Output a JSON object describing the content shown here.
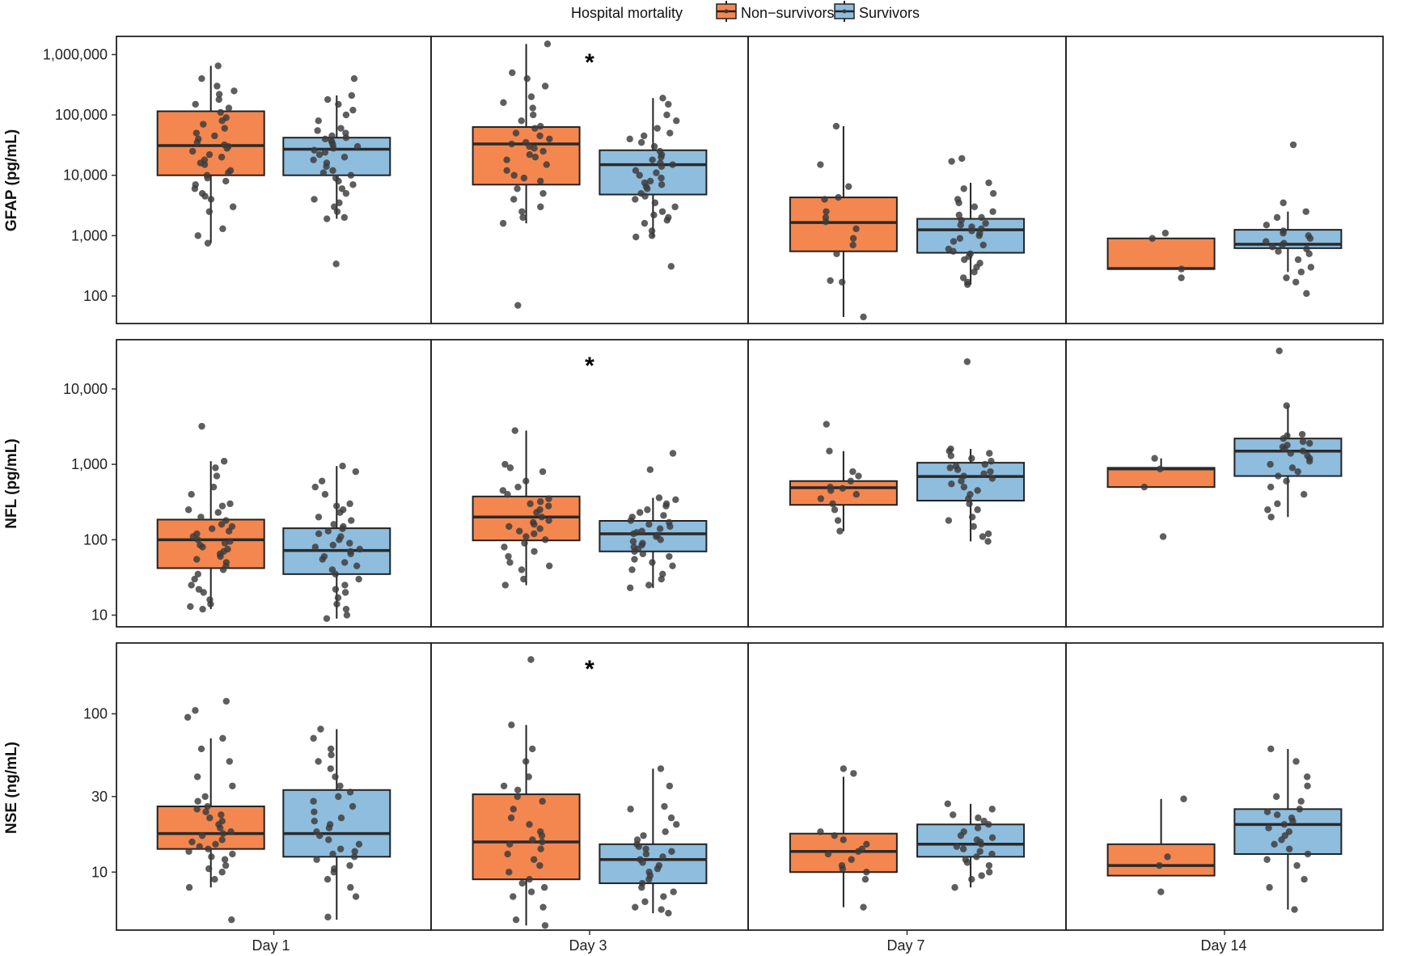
{
  "chart_data": {
    "type": "box",
    "legend": {
      "title": "Hospital mortality",
      "entries": [
        "Non−survivors",
        "Survivors"
      ],
      "position": "top-center"
    },
    "colors": {
      "Non-survivors": "#F4874F",
      "Survivors": "#8FBDDD",
      "points": "#3a3a3a"
    },
    "groups": [
      "Non-survivors",
      "Survivors"
    ],
    "columns": [
      "Day 1",
      "Day 3",
      "Day 7",
      "Day 14"
    ],
    "rows": [
      {
        "ylabel": "GFAP (pg/mL)",
        "scale": "log10",
        "ylim": [
          35,
          2000000
        ],
        "ticks": [
          100,
          1000,
          10000,
          100000,
          1000000
        ],
        "tick_labels": [
          "100",
          "1,000",
          "10,000",
          "100,000",
          "1,000,000"
        ],
        "significant": [
          false,
          true,
          false,
          false
        ],
        "boxes": [
          [
            {
              "q1": 10000,
              "median": 31000,
              "q3": 115000,
              "lo": 750,
              "hi": 650000
            },
            {
              "q1": 10000,
              "median": 27000,
              "q3": 42000,
              "lo": 1900,
              "hi": 210000
            }
          ],
          [
            {
              "q1": 7000,
              "median": 33000,
              "q3": 63000,
              "lo": 1600,
              "hi": 1500000
            },
            {
              "q1": 4800,
              "median": 15000,
              "q3": 26000,
              "lo": 950,
              "hi": 190000
            }
          ],
          [
            {
              "q1": 550,
              "median": 1650,
              "q3": 4300,
              "lo": 45,
              "hi": 65000
            },
            {
              "q1": 520,
              "median": 1250,
              "q3": 1900,
              "lo": 155,
              "hi": 7500
            }
          ],
          [
            {
              "q1": 280,
              "median": 285,
              "q3": 900,
              "lo": 280,
              "hi": 900
            },
            {
              "q1": 620,
              "median": 720,
              "q3": 1250,
              "lo": 250,
              "hi": 2500
            }
          ]
        ],
        "points": [
          [
            [
              650000,
              400000,
              300000,
              250000,
              220000,
              180000,
              150000,
              130000,
              110000,
              90000,
              80000,
              70000,
              60000,
              50000,
              45000,
              40000,
              35000,
              32000,
              30000,
              28000,
              25000,
              22000,
              20000,
              18000,
              16000,
              15000,
              12000,
              11000,
              10000,
              9000,
              8000,
              7000,
              6000,
              5000,
              4500,
              4000,
              3000,
              2500,
              1300,
              1000,
              750
            ],
            [
              400000,
              210000,
              180000,
              150000,
              120000,
              100000,
              80000,
              60000,
              55000,
              50000,
              45000,
              42000,
              40000,
              38000,
              35000,
              32000,
              30000,
              28000,
              26000,
              24000,
              22000,
              20000,
              18000,
              16000,
              14000,
              12000,
              11000,
              10000,
              9000,
              8000,
              7000,
              6000,
              5000,
              4000,
              3500,
              3000,
              2500,
              2000,
              1900,
              340
            ]
          ],
          [
            [
              1500000,
              500000,
              400000,
              300000,
              200000,
              160000,
              130000,
              100000,
              80000,
              65000,
              60000,
              50000,
              45000,
              40000,
              35000,
              33000,
              30000,
              28000,
              25000,
              22000,
              20000,
              18000,
              15000,
              12000,
              10000,
              9000,
              8000,
              6000,
              5000,
              4000,
              3000,
              2500,
              2000,
              1600,
              70
            ],
            [
              190000,
              150000,
              100000,
              80000,
              60000,
              50000,
              45000,
              40000,
              35000,
              30000,
              25000,
              22000,
              20000,
              18000,
              16000,
              15000,
              14000,
              12000,
              11000,
              10000,
              9000,
              8000,
              7500,
              7000,
              6500,
              6000,
              5000,
              4500,
              4000,
              3500,
              3000,
              2500,
              2200,
              2000,
              1800,
              1600,
              1200,
              1000,
              950,
              310
            ]
          ],
          [
            [
              65000,
              15000,
              6500,
              4300,
              4000,
              2500,
              2000,
              1700,
              1300,
              900,
              700,
              500,
              180,
              170,
              45
            ],
            [
              19000,
              17000,
              7500,
              6000,
              5000,
              4000,
              3500,
              3000,
              2500,
              2200,
              2000,
              1800,
              1600,
              1500,
              1400,
              1300,
              1200,
              1100,
              1000,
              900,
              800,
              700,
              600,
              550,
              500,
              450,
              400,
              350,
              300,
              250,
              200,
              170,
              155
            ]
          ],
          [
            [
              1100,
              900,
              280,
              200
            ],
            [
              32000,
              3500,
              2500,
              2000,
              1500,
              1200,
              1100,
              1000,
              900,
              800,
              750,
              700,
              650,
              600,
              550,
              500,
              400,
              300,
              250,
              200,
              170,
              110
            ]
          ]
        ]
      },
      {
        "ylabel": "NFL (pg/mL)",
        "scale": "log10",
        "ylim": [
          7,
          45000
        ],
        "ticks": [
          10,
          100,
          1000,
          10000
        ],
        "tick_labels": [
          "10",
          "100",
          "1,000",
          "10,000"
        ],
        "significant": [
          false,
          true,
          false,
          false
        ],
        "boxes": [
          [
            {
              "q1": 42,
              "median": 100,
              "q3": 185,
              "lo": 12,
              "hi": 1100
            },
            {
              "q1": 35,
              "median": 72,
              "q3": 142,
              "lo": 9,
              "hi": 950
            }
          ],
          [
            {
              "q1": 98,
              "median": 200,
              "q3": 375,
              "lo": 25,
              "hi": 2800
            },
            {
              "q1": 70,
              "median": 120,
              "q3": 178,
              "lo": 23,
              "hi": 360
            }
          ],
          [
            {
              "q1": 290,
              "median": 490,
              "q3": 600,
              "lo": 130,
              "hi": 1500
            },
            {
              "q1": 330,
              "median": 690,
              "q3": 1050,
              "lo": 95,
              "hi": 1600
            }
          ],
          [
            {
              "q1": 500,
              "median": 870,
              "q3": 900,
              "lo": 500,
              "hi": 1200
            },
            {
              "q1": 700,
              "median": 1500,
              "q3": 2200,
              "lo": 200,
              "hi": 6000
            }
          ]
        ],
        "points": [
          [
            [
              3200,
              1100,
              900,
              700,
              500,
              400,
              300,
              280,
              250,
              230,
              200,
              180,
              160,
              150,
              140,
              130,
              120,
              110,
              100,
              95,
              90,
              85,
              80,
              75,
              70,
              65,
              60,
              55,
              50,
              45,
              40,
              35,
              30,
              25,
              22,
              20,
              16,
              14,
              13,
              12
            ],
            [
              950,
              800,
              600,
              500,
              400,
              300,
              280,
              250,
              230,
              200,
              180,
              160,
              150,
              140,
              130,
              120,
              110,
              100,
              90,
              85,
              80,
              75,
              70,
              65,
              60,
              55,
              50,
              45,
              40,
              35,
              30,
              25,
              22,
              20,
              17,
              14,
              12,
              10,
              9
            ]
          ],
          [
            [
              2800,
              1000,
              900,
              800,
              600,
              500,
              450,
              400,
              350,
              320,
              300,
              280,
              250,
              230,
              200,
              180,
              170,
              160,
              150,
              140,
              130,
              120,
              110,
              100,
              90,
              80,
              70,
              60,
              50,
              45,
              40,
              30,
              25
            ],
            [
              1400,
              850,
              360,
              340,
              300,
              280,
              250,
              230,
              210,
              200,
              180,
              170,
              160,
              150,
              140,
              130,
              125,
              120,
              115,
              110,
              100,
              95,
              90,
              85,
              80,
              75,
              70,
              65,
              60,
              55,
              50,
              45,
              40,
              35,
              30,
              25,
              23
            ]
          ],
          [
            [
              3400,
              1500,
              800,
              700,
              600,
              500,
              480,
              450,
              400,
              350,
              300,
              250,
              180,
              130
            ],
            [
              23000,
              1600,
              1500,
              1400,
              1300,
              1200,
              1100,
              1000,
              950,
              900,
              850,
              800,
              750,
              700,
              650,
              600,
              550,
              500,
              450,
              400,
              350,
              300,
              250,
              200,
              180,
              150,
              120,
              110,
              95
            ]
          ],
          [
            [
              1200,
              870,
              500,
              110
            ],
            [
              32000,
              6000,
              2500,
              2400,
              2200,
              2000,
              1900,
              1800,
              1700,
              1600,
              1500,
              1400,
              1300,
              1200,
              1100,
              1000,
              900,
              800,
              700,
              600,
              500,
              400,
              300,
              250,
              200
            ]
          ]
        ]
      },
      {
        "ylabel": "NSE (ng/mL)",
        "scale": "log10",
        "ylim": [
          4.3,
          280
        ],
        "ticks": [
          10,
          30,
          100
        ],
        "tick_labels": [
          "10",
          "30",
          "100"
        ],
        "significant": [
          false,
          true,
          false,
          false
        ],
        "boxes": [
          [
            {
              "q1": 14,
              "median": 17.5,
              "q3": 26,
              "lo": 8,
              "hi": 70
            },
            {
              "q1": 12.5,
              "median": 17.5,
              "q3": 33,
              "lo": 5,
              "hi": 80
            }
          ],
          [
            {
              "q1": 9,
              "median": 15.5,
              "q3": 31,
              "lo": 4.6,
              "hi": 85
            },
            {
              "q1": 8.5,
              "median": 12,
              "q3": 15,
              "lo": 5.5,
              "hi": 45
            }
          ],
          [
            {
              "q1": 10,
              "median": 13.5,
              "q3": 17.5,
              "lo": 6,
              "hi": 40
            },
            {
              "q1": 12.5,
              "median": 15,
              "q3": 20,
              "lo": 8,
              "hi": 27
            }
          ],
          [
            {
              "q1": 9.5,
              "median": 11,
              "q3": 15,
              "lo": 9.5,
              "hi": 29
            },
            {
              "q1": 13,
              "median": 20,
              "q3": 25,
              "lo": 5.8,
              "hi": 60
            }
          ]
        ],
        "points": [
          [
            [
              120,
              105,
              95,
              70,
              60,
              50,
              40,
              35,
              30,
              28,
              26,
              25,
              24,
              23,
              22,
              21,
              20,
              19,
              18,
              17.5,
              17,
              16,
              15.5,
              15,
              14.5,
              14,
              13.5,
              13,
              12.5,
              12,
              11,
              10.5,
              10,
              9,
              8,
              5
            ],
            [
              80,
              70,
              60,
              55,
              50,
              45,
              40,
              35,
              32,
              30,
              28,
              26,
              24,
              22,
              21,
              20,
              19,
              18,
              17,
              16,
              15,
              14,
              13.5,
              13,
              12.5,
              12,
              11,
              10.5,
              10,
              9,
              8,
              7,
              5.2
            ]
          ],
          [
            [
              220,
              85,
              60,
              50,
              40,
              35,
              33,
              30,
              28,
              25,
              22,
              20,
              18,
              17,
              16,
              15.5,
              15,
              14,
              13,
              12,
              11,
              10,
              9,
              8.5,
              8,
              7.5,
              7,
              6,
              5,
              4.6
            ],
            [
              45,
              35,
              26,
              25,
              22,
              20,
              18,
              17,
              16,
              15,
              14.5,
              14,
              13.5,
              13,
              12.5,
              12,
              11.5,
              11,
              10.5,
              10,
              9.5,
              9,
              8.5,
              8,
              7.5,
              7,
              6.5,
              6,
              5.8,
              5.5
            ]
          ],
          [
            [
              45,
              42,
              18,
              17,
              16,
              15,
              14,
              13.5,
              13,
              12,
              11,
              10.5,
              10,
              9,
              6
            ],
            [
              27,
              25,
              23,
              22,
              21,
              20,
              19,
              18,
              17,
              16.5,
              16,
              15.5,
              15,
              14.5,
              14,
              13.5,
              13,
              12.5,
              12,
              11.5,
              11,
              10,
              9.5,
              9,
              8
            ]
          ],
          [
            [
              29,
              12.5,
              11,
              7.5
            ],
            [
              60,
              50,
              40,
              35,
              30,
              28,
              25,
              24,
              23,
              22,
              21,
              20,
              19,
              18,
              17,
              16,
              15,
              14,
              13,
              12,
              11,
              9,
              8,
              5.8
            ]
          ]
        ]
      }
    ]
  }
}
